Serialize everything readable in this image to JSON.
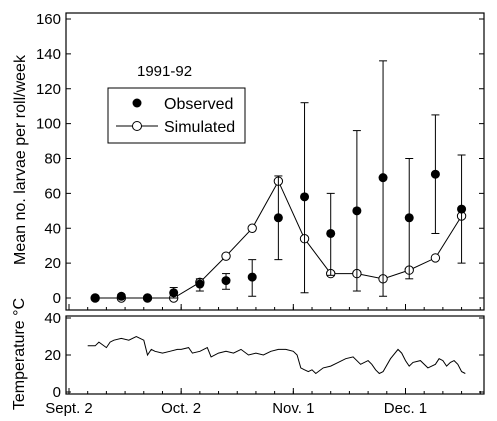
{
  "chart_data": [
    {
      "type": "scatter",
      "title": "",
      "annotation": "1991-92",
      "ylabel": "Mean no. larvae per roll/week",
      "xlabel": "",
      "x_is_day_offset": true,
      "xlim": [
        0,
        111
      ],
      "ylim": [
        0,
        160
      ],
      "yticks": [
        0,
        20,
        40,
        60,
        80,
        100,
        120,
        140,
        160
      ],
      "legend": {
        "position": "upper-left",
        "entries": [
          "Observed",
          "Simulated"
        ]
      },
      "series": [
        {
          "name": "Observed",
          "marker": "filled-circle",
          "line": false,
          "points": [
            {
              "x": 7,
              "y": 0,
              "lo": 0,
              "hi": 0
            },
            {
              "x": 14,
              "y": 1,
              "lo": 0,
              "hi": 2
            },
            {
              "x": 21,
              "y": 0,
              "lo": 0,
              "hi": 0
            },
            {
              "x": 28,
              "y": 3,
              "lo": 0,
              "hi": 6
            },
            {
              "x": 35,
              "y": 8,
              "lo": 4,
              "hi": 11
            },
            {
              "x": 42,
              "y": 10,
              "lo": 5,
              "hi": 14
            },
            {
              "x": 49,
              "y": 12,
              "lo": 1,
              "hi": 22
            },
            {
              "x": 56,
              "y": 46,
              "lo": 22,
              "hi": 70
            },
            {
              "x": 63,
              "y": 58,
              "lo": 3,
              "hi": 112
            },
            {
              "x": 70,
              "y": 37,
              "lo": 13,
              "hi": 60
            },
            {
              "x": 77,
              "y": 50,
              "lo": 4,
              "hi": 96
            },
            {
              "x": 84,
              "y": 69,
              "lo": 1,
              "hi": 136
            },
            {
              "x": 91,
              "y": 46,
              "lo": 11,
              "hi": 80
            },
            {
              "x": 98,
              "y": 71,
              "lo": 37,
              "hi": 105
            },
            {
              "x": 105,
              "y": 51,
              "lo": 20,
              "hi": 82
            }
          ]
        },
        {
          "name": "Simulated",
          "marker": "open-circle",
          "line": true,
          "points": [
            {
              "x": 7,
              "y": 0
            },
            {
              "x": 14,
              "y": 0
            },
            {
              "x": 21,
              "y": 0
            },
            {
              "x": 28,
              "y": 0
            },
            {
              "x": 35,
              "y": 9
            },
            {
              "x": 42,
              "y": 24
            },
            {
              "x": 49,
              "y": 40
            },
            {
              "x": 56,
              "y": 67
            },
            {
              "x": 63,
              "y": 34
            },
            {
              "x": 70,
              "y": 14
            },
            {
              "x": 77,
              "y": 14
            },
            {
              "x": 84,
              "y": 11
            },
            {
              "x": 91,
              "y": 16
            },
            {
              "x": 98,
              "y": 23
            },
            {
              "x": 105,
              "y": 47
            }
          ]
        }
      ]
    },
    {
      "type": "line",
      "title": "",
      "ylabel": "Temperature °C",
      "xlabel": "",
      "x_is_day_offset": true,
      "xlim": [
        0,
        111
      ],
      "ylim": [
        0,
        40
      ],
      "yticks": [
        0,
        20,
        40
      ],
      "xticks": [
        {
          "x": 0,
          "label": "Sept. 2"
        },
        {
          "x": 30,
          "label": "Oct. 2"
        },
        {
          "x": 60,
          "label": "Nov. 1"
        },
        {
          "x": 90,
          "label": "Dec. 1"
        }
      ],
      "series": [
        {
          "name": "Temperature",
          "x": [
            5,
            7,
            8,
            10,
            11,
            12,
            14,
            16,
            18,
            20,
            21,
            22,
            23,
            25,
            27,
            29,
            30,
            32,
            33,
            35,
            37,
            38,
            40,
            42,
            44,
            46,
            48,
            50,
            52,
            54,
            56,
            58,
            60,
            61,
            62,
            63,
            64,
            65,
            66,
            68,
            70,
            72,
            74,
            76,
            78,
            80,
            81,
            82,
            83,
            84,
            86,
            88,
            89,
            90,
            91,
            92,
            94,
            96,
            98,
            99,
            100,
            101,
            102,
            103,
            104,
            105,
            106
          ],
          "y": [
            25,
            25,
            27,
            24,
            27,
            28,
            29,
            28,
            30,
            28,
            20,
            23,
            22,
            21,
            22,
            23,
            23,
            24,
            21,
            22,
            24,
            19,
            21,
            22,
            21,
            23,
            20,
            21,
            20,
            22,
            23,
            23,
            22,
            20,
            13,
            12,
            11,
            12,
            10,
            13,
            14,
            16,
            18,
            19,
            15,
            17,
            15,
            12,
            10,
            11,
            18,
            23,
            21,
            17,
            14,
            16,
            17,
            13,
            15,
            18,
            17,
            14,
            16,
            17,
            15,
            11,
            10
          ]
        }
      ]
    }
  ]
}
